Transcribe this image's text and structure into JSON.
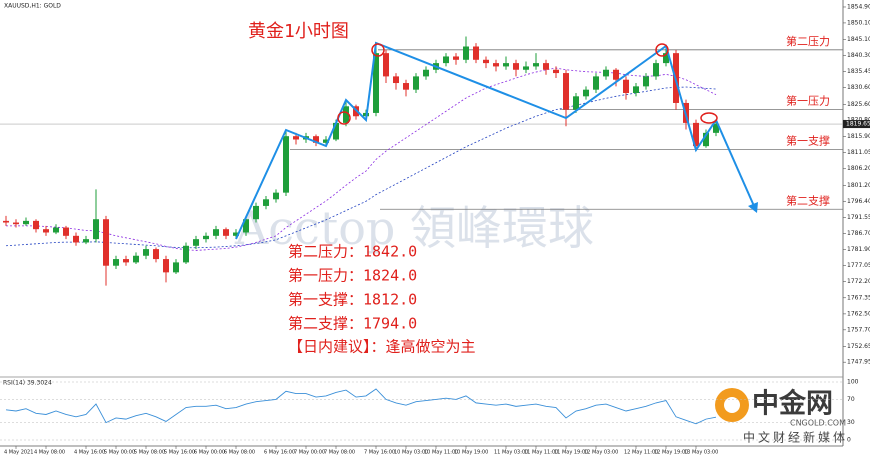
{
  "chart_data": {
    "type": "candlestick",
    "title": "黄金1小时图",
    "symbol_label": "XAUUSD,H1: GOLD",
    "watermark": "Acctop 領峰環球",
    "up_color": "#1e9e3a",
    "down_color": "#e0302b",
    "categories": [
      null,
      "4 May 2021",
      null,
      null,
      "4 May 08:00",
      null,
      null,
      null,
      "4 May 16:00",
      null,
      null,
      "5 May 00:00",
      null,
      null,
      "5 May 08:00",
      null,
      null,
      "5 May 16:00",
      null,
      null,
      "6 May 00:00",
      null,
      null,
      "6 May 08:00",
      null,
      null,
      null,
      "6 May 16:00",
      null,
      null,
      "7 May 00:00",
      null,
      null,
      "7 May 08:00",
      null,
      null,
      null,
      "7 May 16:00",
      null,
      null,
      "10 May 03:00",
      null,
      null,
      "10 May 11:00",
      null,
      null,
      "10 May 19:00",
      null,
      null,
      null,
      "11 May 03:00",
      null,
      null,
      "11 May 11:00",
      null,
      null,
      "11 May 19:00",
      null,
      null,
      "12 May 03:00",
      null,
      null,
      null,
      "12 May 11:00",
      null,
      null,
      "12 May 19:00",
      null,
      null,
      "13 May 03:00",
      null,
      null
    ],
    "ohlc": [
      [
        1790.5,
        1792,
        1789,
        1790
      ],
      [
        1790,
        1791,
        1788.5,
        1789.5
      ],
      [
        1789.5,
        1791.5,
        1789,
        1790.5
      ],
      [
        1790.5,
        1791,
        1787,
        1788
      ],
      [
        1788,
        1789,
        1786,
        1787
      ],
      [
        1787,
        1789.5,
        1786.5,
        1788.5
      ],
      [
        1788.5,
        1789,
        1785,
        1786
      ],
      [
        1786,
        1787,
        1783,
        1784
      ],
      [
        1784,
        1786,
        1783.5,
        1785
      ],
      [
        1785,
        1800,
        1784,
        1791
      ],
      [
        1791,
        1792,
        1771,
        1777
      ],
      [
        1777,
        1780,
        1776,
        1779
      ],
      [
        1779,
        1780,
        1777,
        1778
      ],
      [
        1778,
        1781,
        1777.5,
        1780
      ],
      [
        1780,
        1783,
        1779,
        1782
      ],
      [
        1782,
        1782.5,
        1778,
        1779
      ],
      [
        1779,
        1780,
        1772,
        1775
      ],
      [
        1775,
        1779,
        1774.5,
        1778
      ],
      [
        1778,
        1784,
        1777.5,
        1783
      ],
      [
        1783,
        1786,
        1782,
        1785
      ],
      [
        1785,
        1787,
        1784,
        1786
      ],
      [
        1786,
        1789,
        1785,
        1788
      ],
      [
        1788,
        1788.5,
        1785,
        1786
      ],
      [
        1786,
        1788,
        1785.5,
        1787
      ],
      [
        1787,
        1792,
        1786,
        1791
      ],
      [
        1791,
        1796,
        1790,
        1795
      ],
      [
        1795,
        1798,
        1794,
        1797
      ],
      [
        1797,
        1800,
        1796,
        1799
      ],
      [
        1799,
        1818,
        1798,
        1816
      ],
      [
        1816,
        1817,
        1813.5,
        1815
      ],
      [
        1815,
        1817,
        1814,
        1816
      ],
      [
        1816,
        1816.5,
        1813,
        1814
      ],
      [
        1814,
        1816,
        1813,
        1815
      ],
      [
        1815,
        1821,
        1814.5,
        1820
      ],
      [
        1820,
        1827,
        1819,
        1825
      ],
      [
        1825,
        1825.5,
        1821,
        1822
      ],
      [
        1822,
        1824,
        1821,
        1823
      ],
      [
        1823,
        1844,
        1822,
        1841
      ],
      [
        1841,
        1842,
        1832,
        1834
      ],
      [
        1834,
        1835,
        1830,
        1832
      ],
      [
        1832,
        1833,
        1828,
        1830
      ],
      [
        1830,
        1835,
        1829,
        1834
      ],
      [
        1834,
        1837,
        1833,
        1836
      ],
      [
        1836,
        1839,
        1835,
        1838
      ],
      [
        1838,
        1841,
        1837,
        1840
      ],
      [
        1840,
        1841,
        1837.5,
        1839
      ],
      [
        1839,
        1846,
        1838,
        1843
      ],
      [
        1843,
        1844,
        1838,
        1839
      ],
      [
        1839,
        1840,
        1836.5,
        1838
      ],
      [
        1838,
        1839,
        1835.5,
        1837
      ],
      [
        1837,
        1840,
        1836,
        1838
      ],
      [
        1838,
        1839,
        1834,
        1836
      ],
      [
        1836,
        1838.5,
        1835,
        1837
      ],
      [
        1837,
        1841,
        1836,
        1838
      ],
      [
        1838,
        1839,
        1834.5,
        1836
      ],
      [
        1836,
        1837,
        1833.5,
        1835
      ],
      [
        1835,
        1836,
        1819,
        1824
      ],
      [
        1824,
        1829,
        1823,
        1828
      ],
      [
        1828,
        1831,
        1827,
        1830
      ],
      [
        1830,
        1835,
        1829,
        1834
      ],
      [
        1834,
        1837,
        1833,
        1836
      ],
      [
        1836,
        1836.5,
        1831,
        1833
      ],
      [
        1833,
        1834,
        1827,
        1829
      ],
      [
        1829,
        1832,
        1828,
        1831
      ],
      [
        1831,
        1835,
        1830,
        1834
      ],
      [
        1834,
        1839,
        1833,
        1838
      ],
      [
        1838,
        1843,
        1837,
        1841
      ],
      [
        1841,
        1842,
        1824,
        1826
      ],
      [
        1826,
        1827,
        1818,
        1820
      ],
      [
        1820,
        1821,
        1812,
        1813
      ],
      [
        1813,
        1818,
        1812.5,
        1817
      ],
      [
        1817,
        1821,
        1816,
        1819.65
      ]
    ],
    "last_price_label": "1819.65",
    "ma": [
      {
        "color": "#8a2be2",
        "values": [
          1789,
          1789,
          1789,
          1789,
          1788.8,
          1788.6,
          1788.4,
          1788,
          1787.6,
          1787.5,
          1786.8,
          1786,
          1785.4,
          1784.8,
          1784.2,
          1783.6,
          1782.8,
          1782.2,
          1781.8,
          1781.6,
          1781.8,
          1782,
          1782.2,
          1782.6,
          1783.2,
          1784,
          1785,
          1786,
          1788.5,
          1790.5,
          1792.5,
          1794.5,
          1796.5,
          1798.8,
          1801.2,
          1803.5,
          1805.5,
          1809,
          1811.5,
          1813.5,
          1815.5,
          1817.5,
          1819.5,
          1821.5,
          1823.5,
          1825.5,
          1827.5,
          1829,
          1830.5,
          1831.5,
          1832.5,
          1833.5,
          1834.5,
          1835.3,
          1836,
          1836.5,
          1836,
          1835.7,
          1835.4,
          1835.3,
          1835.2,
          1835,
          1834.5,
          1834.2,
          1834,
          1834.2,
          1834.6,
          1834,
          1833,
          1831.5,
          1830,
          1828.5
        ]
      },
      {
        "color": "#2040c0",
        "values": [
          1783,
          1783.2,
          1783.4,
          1783.6,
          1783.8,
          1784,
          1784.1,
          1784.1,
          1784.1,
          1784.2,
          1784,
          1783.8,
          1783.6,
          1783.4,
          1783.2,
          1783,
          1782.7,
          1782.5,
          1782.4,
          1782.4,
          1782.5,
          1782.6,
          1782.8,
          1783,
          1783.3,
          1783.7,
          1784.2,
          1784.8,
          1786,
          1787.2,
          1788.4,
          1789.6,
          1790.8,
          1792.2,
          1793.6,
          1795,
          1796.4,
          1798.4,
          1800,
          1801.6,
          1803.2,
          1804.8,
          1806.4,
          1808,
          1809.6,
          1811.2,
          1812.8,
          1814.2,
          1815.6,
          1817,
          1818.4,
          1819.6,
          1820.8,
          1822,
          1823,
          1824,
          1824.6,
          1825.3,
          1826,
          1826.7,
          1827.4,
          1828,
          1828.5,
          1829,
          1829.5,
          1830,
          1830.5,
          1830.7,
          1830.8,
          1830.6,
          1830.4,
          1830.2
        ]
      }
    ],
    "ylim": [
      1745,
      1857
    ],
    "yticks": [
      {
        "value": 1854.9,
        "label": "1854.90"
      },
      {
        "value": 1850.1,
        "label": "1850.10"
      },
      {
        "value": 1845.1,
        "label": "1845.10"
      },
      {
        "value": 1840.3,
        "label": "1840.30"
      },
      {
        "value": 1835.45,
        "label": "1835.45"
      },
      {
        "value": 1830.6,
        "label": "1830.60"
      },
      {
        "value": 1825.6,
        "label": "1825.60"
      },
      {
        "value": 1820.8,
        "label": "1820.80"
      },
      {
        "value": 1815.9,
        "label": "1815.90"
      },
      {
        "value": 1811.05,
        "label": "1811.05"
      },
      {
        "value": 1806.2,
        "label": "1806.20"
      },
      {
        "value": 1801.2,
        "label": "1801.20"
      },
      {
        "value": 1796.4,
        "label": "1796.40"
      },
      {
        "value": 1791.55,
        "label": "1791.55"
      },
      {
        "value": 1786.7,
        "label": "1786.70"
      },
      {
        "value": 1781.9,
        "label": "1781.90"
      },
      {
        "value": 1777.05,
        "label": "1777.05"
      },
      {
        "value": 1772.2,
        "label": "1772.20"
      },
      {
        "value": 1767.35,
        "label": "1767.35"
      },
      {
        "value": 1762.5,
        "label": "1762.50"
      },
      {
        "value": 1757.7,
        "label": "1757.70"
      },
      {
        "value": 1752.65,
        "label": "1752.65"
      },
      {
        "value": 1747.95,
        "label": "1747.95"
      }
    ],
    "levels": [
      {
        "name": "第二压力",
        "value": 1842,
        "label": "第二压力：1842.0"
      },
      {
        "name": "第一压力",
        "value": 1824,
        "label": "第一压力：1824.0"
      },
      {
        "name": "第一支撑",
        "value": 1812,
        "label": "第一支撑：1812.0"
      },
      {
        "name": "第二支撑",
        "value": 1794,
        "label": "第二支撑：1794.0"
      }
    ],
    "advice": "【日内建议】：逢高做空为主",
    "rsi": {
      "label": "RSI(14) 39.3024",
      "color": "#3a8fd8",
      "ylim": [
        0,
        100
      ],
      "yticks": [
        0,
        30,
        70,
        100
      ],
      "values": [
        52,
        50,
        54,
        46,
        44,
        50,
        44,
        40,
        44,
        62,
        30,
        38,
        36,
        42,
        46,
        40,
        32,
        44,
        56,
        58,
        58,
        60,
        54,
        56,
        62,
        66,
        68,
        70,
        84,
        80,
        80,
        74,
        76,
        82,
        86,
        74,
        76,
        88,
        70,
        64,
        60,
        66,
        68,
        70,
        72,
        70,
        76,
        64,
        62,
        60,
        62,
        58,
        60,
        62,
        58,
        56,
        38,
        50,
        54,
        60,
        62,
        56,
        50,
        54,
        58,
        64,
        68,
        40,
        34,
        28,
        36,
        39.3024
      ]
    },
    "logo": {
      "name": "中金网",
      "site": "CNGOLD.COM",
      "slogan": "中文财经新媒体"
    }
  }
}
